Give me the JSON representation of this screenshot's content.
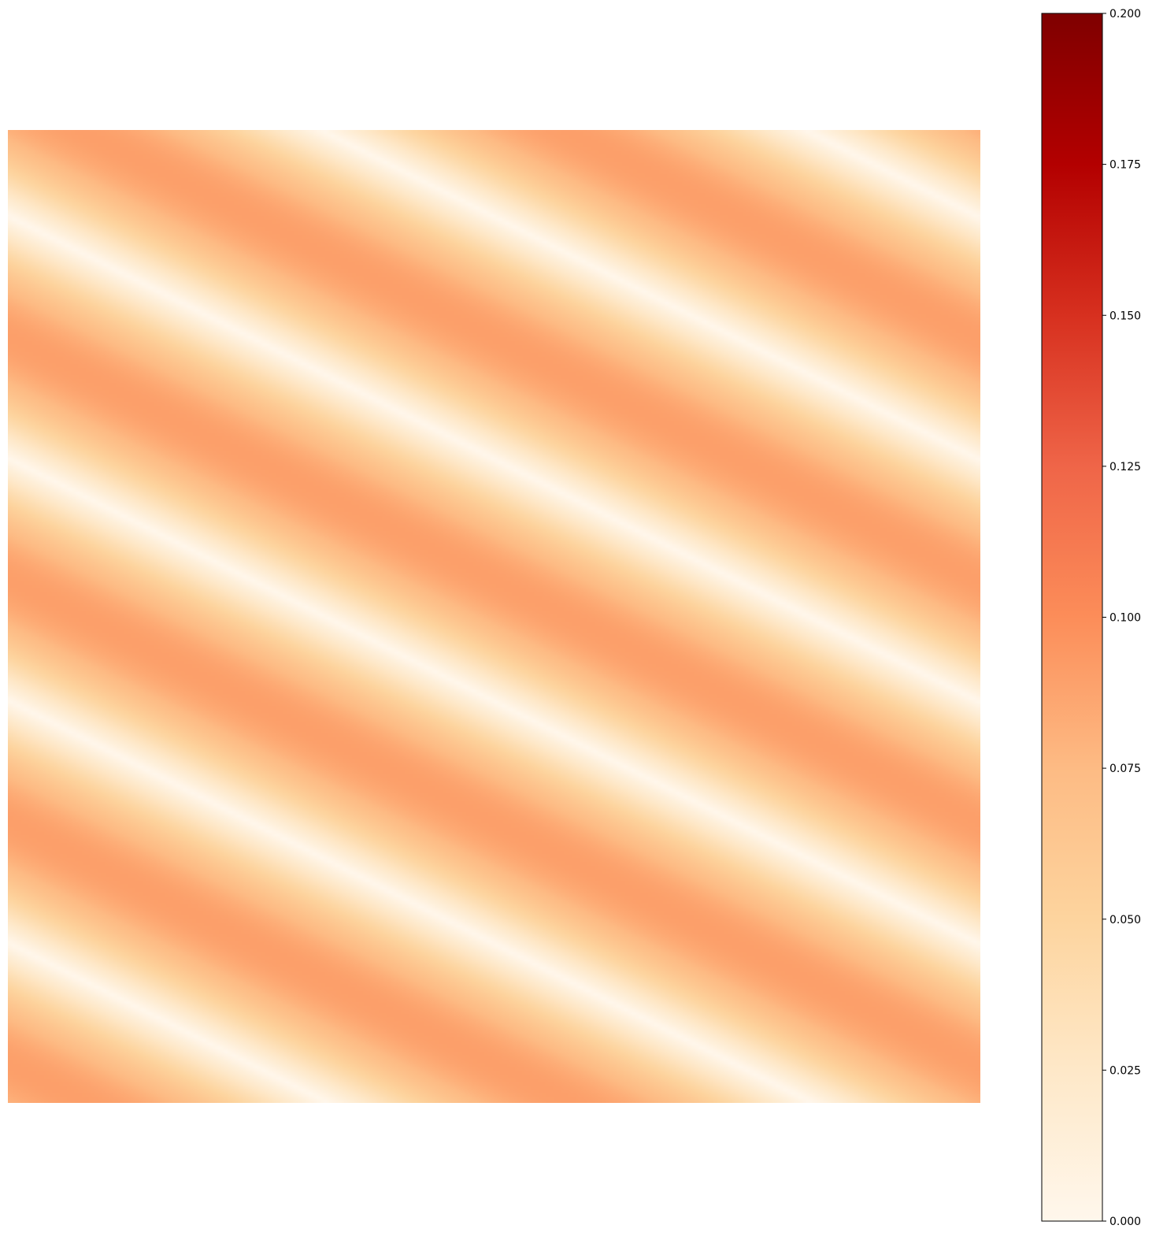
{
  "chart_data": {
    "type": "heatmap",
    "title": "",
    "xlabel": "",
    "ylabel": "",
    "axes_visible": false,
    "grid": false,
    "colormap": {
      "name": "OrRd",
      "stops": [
        "#fff7ec",
        "#fee8c8",
        "#fdd49e",
        "#fdbb84",
        "#fc8d59",
        "#ef6548",
        "#d7301f",
        "#b30000",
        "#7f0000"
      ]
    },
    "colorbar": {
      "placement": "right",
      "vmin": 0.0,
      "vmax": 0.2,
      "ticks": [
        {
          "value": 0.0,
          "label": "0.000"
        },
        {
          "value": 0.025,
          "label": "0.025"
        },
        {
          "value": 0.05,
          "label": "0.050"
        },
        {
          "value": 0.075,
          "label": "0.075"
        },
        {
          "value": 0.1,
          "label": "0.100"
        },
        {
          "value": 0.125,
          "label": "0.125"
        },
        {
          "value": 0.15,
          "label": "0.150"
        },
        {
          "value": 0.175,
          "label": "0.175"
        },
        {
          "value": 0.2,
          "label": "0.200"
        }
      ]
    },
    "field": {
      "description_of_pattern": "diagonal periodic bands",
      "value_min": 0.0,
      "value_max": 0.09,
      "stripes_across_width": 2,
      "stripes_across_height": 4
    }
  }
}
